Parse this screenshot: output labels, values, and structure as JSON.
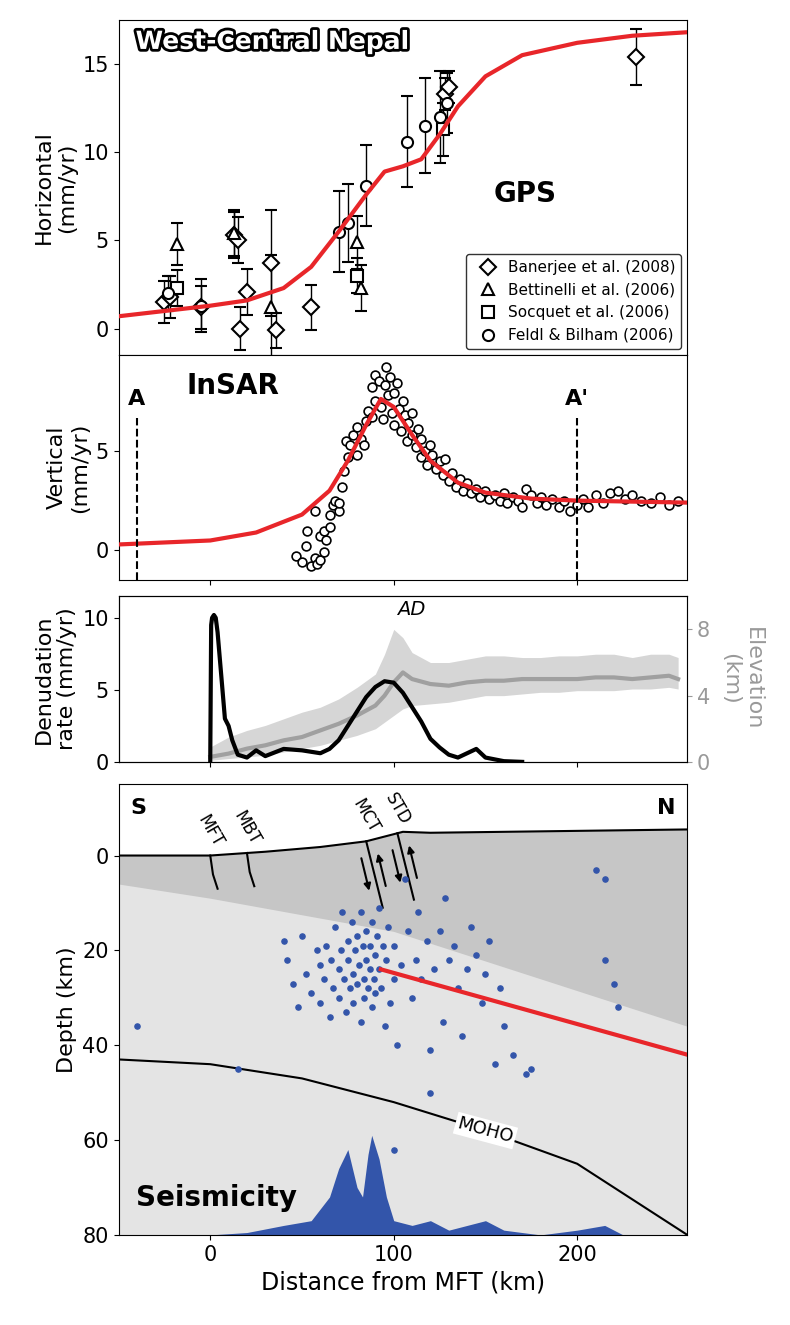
{
  "chart_data": [
    {
      "type": "scatter",
      "title": "West-Central Nepal",
      "ylabel": "Horizontal\n(mm/yr)",
      "annotation": "GPS",
      "legend": "lower right",
      "tick_labels": "y",
      "xlim": [
        -50,
        260
      ],
      "ylim": [
        -1.5,
        17.5
      ],
      "xticks": [
        0,
        100,
        200
      ],
      "yticks": [
        0,
        5,
        10,
        15
      ],
      "series": [
        {
          "type": "line",
          "color": "#e8262a",
          "line_style": "solid",
          "x": [
            -50,
            -25,
            0,
            20,
            40,
            55,
            70,
            85,
            95,
            105,
            115,
            125,
            135,
            150,
            170,
            200,
            230,
            260
          ],
          "values": [
            0.7,
            1.0,
            1.3,
            1.6,
            2.3,
            3.5,
            5.5,
            7.6,
            8.9,
            9.2,
            9.6,
            11.0,
            12.6,
            14.3,
            15.5,
            16.2,
            16.6,
            16.8
          ]
        },
        {
          "type": "scatter",
          "name": "Banerjee et al. (2008)",
          "color": "#000000",
          "marker": "diamond",
          "x": [
            -25,
            -22,
            -5,
            13,
            15,
            16,
            20,
            33,
            36,
            55,
            128,
            130,
            232
          ],
          "values": [
            1.5,
            1.8,
            1.2,
            5.3,
            5.0,
            0.0,
            2.1,
            3.7,
            -0.1,
            1.2,
            13.3,
            13.7,
            15.4
          ],
          "errors": [
            1.2,
            1.2,
            1.2,
            1.3,
            1.3,
            1.2,
            1.3,
            3.0,
            1.0,
            1.3,
            0.9,
            0.9,
            1.6
          ]
        },
        {
          "type": "scatter",
          "name": "Bettinelli et al. (2006)",
          "color": "#000000",
          "marker": "triangle",
          "x": [
            -18,
            13,
            33,
            80,
            82
          ],
          "values": [
            4.8,
            5.4,
            1.2,
            4.9,
            2.3
          ],
          "errors": [
            1.2,
            1.3,
            3.0,
            1.5,
            1.3
          ]
        },
        {
          "type": "scatter",
          "name": "Socquet et al. (2006)",
          "color": "#000000",
          "marker": "square",
          "x": [
            -18,
            80,
            127
          ],
          "values": [
            2.3,
            3.0,
            11.3
          ],
          "errors": [
            1.0,
            1.0,
            1.5
          ]
        },
        {
          "type": "scatter",
          "name": "Feldl & Bilham (2006)",
          "color": "#000000",
          "marker": "circle",
          "x": [
            -23,
            -5,
            70,
            75,
            85,
            107,
            117,
            125,
            129
          ],
          "values": [
            2.0,
            1.3,
            5.5,
            6.0,
            8.1,
            10.6,
            11.5,
            12.0,
            12.8
          ],
          "errors": [
            1.0,
            1.5,
            2.3,
            2.2,
            2.3,
            2.6,
            2.7,
            2.6,
            1.7
          ]
        }
      ]
    },
    {
      "type": "scatter",
      "ylabel": "Vertical\n(mm/yr)",
      "annotation": "InSAR",
      "tick_labels": "y",
      "xlim": [
        -50,
        260
      ],
      "ylim": [
        -1.5,
        9.8
      ],
      "xticks": [
        0,
        100,
        200
      ],
      "yticks": [
        0,
        5
      ],
      "markers": [
        {
          "label": "A",
          "x": -40
        },
        {
          "label": "A'",
          "x": 200
        }
      ],
      "series": [
        {
          "type": "scatter",
          "color": "#000000",
          "marker": "circle",
          "x": [
            47,
            50,
            52,
            53,
            55,
            57,
            57,
            58,
            60,
            60,
            62,
            62,
            63,
            65,
            65,
            67,
            68,
            70,
            70,
            72,
            73,
            74,
            75,
            76,
            78,
            80,
            80,
            82,
            84,
            85,
            86,
            88,
            88,
            90,
            90,
            92,
            93,
            94,
            95,
            96,
            97,
            98,
            99,
            100,
            100,
            102,
            103,
            104,
            105,
            106,
            107,
            108,
            110,
            110,
            112,
            113,
            115,
            115,
            117,
            118,
            120,
            121,
            123,
            125,
            127,
            128,
            130,
            132,
            134,
            136,
            138,
            140,
            142,
            145,
            147,
            150,
            152,
            155,
            158,
            160,
            162,
            165,
            168,
            170,
            172,
            175,
            178,
            180,
            183,
            186,
            190,
            193,
            196,
            200,
            203,
            206,
            210,
            214,
            218,
            222,
            226,
            230,
            235,
            240,
            245,
            250,
            255
          ],
          "values": [
            -0.3,
            -0.6,
            0.2,
            1.0,
            -0.8,
            -0.4,
            2.0,
            -0.7,
            -0.5,
            0.7,
            -0.1,
            1.0,
            0.5,
            1.2,
            1.8,
            2.3,
            2.5,
            2.0,
            2.4,
            3.2,
            4.0,
            5.5,
            4.7,
            5.3,
            5.8,
            4.8,
            6.2,
            5.6,
            5.3,
            6.5,
            7.0,
            6.7,
            8.2,
            7.5,
            8.8,
            8.5,
            7.2,
            6.6,
            8.3,
            9.2,
            7.8,
            8.7,
            6.9,
            7.9,
            6.3,
            8.4,
            7.1,
            6.0,
            7.5,
            6.8,
            5.5,
            6.4,
            6.9,
            5.8,
            5.2,
            6.1,
            5.6,
            4.7,
            5.0,
            4.3,
            5.3,
            4.8,
            4.1,
            4.5,
            3.8,
            4.6,
            3.5,
            3.9,
            3.2,
            3.6,
            3.0,
            3.4,
            2.9,
            3.1,
            2.7,
            3.0,
            2.6,
            2.8,
            2.5,
            2.9,
            2.4,
            2.7,
            2.5,
            2.2,
            3.1,
            2.8,
            2.4,
            2.7,
            2.3,
            2.6,
            2.2,
            2.5,
            2.0,
            2.3,
            2.6,
            2.2,
            2.8,
            2.4,
            2.9,
            3.0,
            2.6,
            2.8,
            2.5,
            2.4,
            2.7,
            2.3,
            2.5
          ]
        },
        {
          "type": "line",
          "color": "#e8262a",
          "line_style": "solid",
          "x": [
            -50,
            0,
            25,
            50,
            65,
            75,
            85,
            93,
            100,
            110,
            120,
            135,
            150,
            175,
            200,
            260
          ],
          "values": [
            0.3,
            0.5,
            0.9,
            1.8,
            3.0,
            4.5,
            6.3,
            7.6,
            7.2,
            5.8,
            4.5,
            3.4,
            2.9,
            2.6,
            2.5,
            2.4
          ]
        }
      ]
    },
    {
      "type": "line",
      "ylabel": "Denudation\nrate (mm/yr)",
      "y2label": "Elevation\n(km)",
      "annotation": "AD",
      "tick_labels": "y",
      "xlim": [
        -50,
        260
      ],
      "ylim": [
        0,
        11.5
      ],
      "xticks": [
        0,
        100,
        200
      ],
      "yticks": [
        0,
        5,
        10
      ],
      "y2lim": [
        0,
        10
      ],
      "y2ticks": [
        0,
        4,
        8
      ],
      "series": [
        {
          "type": "band",
          "axis": "y2",
          "color": "#d6d6d6",
          "x": [
            0,
            10,
            20,
            30,
            40,
            50,
            60,
            70,
            80,
            90,
            95,
            100,
            105,
            110,
            120,
            130,
            140,
            150,
            160,
            170,
            180,
            190,
            200,
            210,
            220,
            230,
            240,
            250,
            255
          ],
          "low": [
            0.1,
            0.2,
            0.3,
            0.4,
            0.6,
            0.8,
            1.0,
            1.3,
            1.6,
            2.0,
            2.4,
            2.8,
            3.2,
            3.4,
            3.5,
            3.6,
            3.8,
            4.0,
            4.0,
            4.1,
            4.2,
            4.2,
            4.3,
            4.3,
            4.3,
            4.4,
            4.4,
            4.5,
            4.4
          ],
          "high": [
            0.9,
            1.5,
            1.9,
            2.2,
            2.6,
            3.0,
            3.3,
            3.8,
            4.5,
            5.3,
            6.5,
            8.0,
            7.5,
            6.6,
            6.0,
            6.0,
            6.2,
            6.4,
            6.4,
            6.3,
            6.3,
            6.4,
            6.4,
            6.5,
            6.5,
            6.3,
            6.5,
            6.5,
            6.3
          ]
        },
        {
          "type": "line",
          "axis": "y2",
          "color": "#a0a0a0",
          "line_style": "solid",
          "x": [
            0,
            10,
            20,
            30,
            40,
            50,
            60,
            70,
            80,
            90,
            95,
            100,
            105,
            110,
            120,
            130,
            140,
            150,
            160,
            170,
            180,
            190,
            200,
            210,
            220,
            230,
            240,
            250,
            255
          ],
          "values": [
            0.3,
            0.5,
            0.8,
            1.0,
            1.3,
            1.5,
            1.9,
            2.3,
            2.8,
            3.4,
            4.0,
            4.8,
            5.4,
            5.0,
            4.7,
            4.6,
            4.8,
            4.9,
            4.9,
            5.0,
            5.0,
            5.0,
            5.0,
            5.1,
            5.1,
            5.0,
            5.1,
            5.2,
            5.0
          ]
        },
        {
          "type": "line",
          "color": "#000000",
          "line_style": "solid",
          "x": [
            0,
            0.5,
            1,
            2,
            3,
            4,
            6,
            8,
            10,
            12,
            15,
            20,
            25,
            30,
            40,
            50,
            60,
            65,
            70,
            75,
            80,
            85,
            90,
            95,
            100,
            105,
            110,
            115,
            120,
            125,
            130,
            135,
            140,
            145,
            150,
            160,
            170
          ],
          "values": [
            0,
            9.5,
            10.0,
            10.2,
            10.0,
            9.0,
            6.0,
            3.0,
            2.5,
            1.5,
            0.5,
            0.3,
            0.8,
            0.4,
            0.9,
            0.8,
            0.6,
            0.9,
            1.5,
            2.5,
            3.5,
            4.5,
            5.2,
            5.6,
            5.5,
            4.8,
            3.8,
            2.8,
            1.6,
            1.0,
            0.5,
            0.3,
            0.6,
            0.9,
            0.3,
            0.05,
            0
          ]
        }
      ]
    },
    {
      "type": "cross_section",
      "xlabel": "Distance from MFT (km)",
      "ylabel": "Depth (km)",
      "left_end": "S",
      "right_end": "N",
      "annotation": "Seismicity",
      "xlim": [
        -50,
        260
      ],
      "ylim": [
        80,
        -15
      ],
      "xticks": [
        0,
        100,
        200
      ],
      "yticks": [
        0,
        20,
        40,
        60,
        80
      ],
      "surface": {
        "color": "#000000",
        "x": [
          -50,
          0,
          30,
          60,
          85,
          95,
          105,
          120,
          160,
          200,
          260
        ],
        "values": [
          0,
          0,
          -0.8,
          -1.8,
          -3,
          -4,
          -5,
          -4.8,
          -5,
          -5.2,
          -5.5
        ]
      },
      "moho": {
        "label": "MOHO",
        "color": "#000000",
        "x": [
          -50,
          0,
          50,
          100,
          150,
          200,
          260
        ],
        "values": [
          43,
          44,
          47,
          52,
          58,
          65,
          80
        ]
      },
      "faults": [
        {
          "name": "MFT",
          "x": 0
        },
        {
          "name": "MBT",
          "x": 20
        },
        {
          "name": "MCT",
          "x": 85
        },
        {
          "name": "STD",
          "x": 102
        }
      ],
      "series": [
        {
          "type": "area",
          "color": "#3355aa",
          "x": [
            -50,
            0,
            20,
            40,
            55,
            65,
            70,
            75,
            80,
            83,
            86,
            88,
            92,
            96,
            100,
            110,
            120,
            130,
            140,
            150,
            160,
            180,
            200,
            215,
            225,
            260
          ],
          "values": [
            80,
            80,
            79.5,
            78,
            77,
            72,
            66,
            62,
            70,
            72,
            63,
            59,
            64,
            72,
            77,
            78,
            77,
            79,
            78,
            77,
            79,
            80,
            79,
            78,
            80,
            80
          ]
        },
        {
          "type": "scatter",
          "color": "#3355aa",
          "marker": "dot",
          "x": [
            -40,
            15,
            40,
            42,
            45,
            48,
            50,
            52,
            55,
            58,
            60,
            60,
            62,
            63,
            65,
            66,
            67,
            68,
            70,
            70,
            71,
            72,
            73,
            74,
            75,
            75,
            76,
            77,
            78,
            78,
            79,
            80,
            80,
            81,
            82,
            82,
            83,
            84,
            84,
            85,
            85,
            86,
            87,
            87,
            88,
            88,
            89,
            90,
            90,
            91,
            92,
            92,
            93,
            94,
            95,
            96,
            97,
            98,
            100,
            100,
            102,
            104,
            106,
            108,
            110,
            112,
            113,
            115,
            118,
            120,
            122,
            125,
            127,
            128,
            130,
            133,
            135,
            137,
            140,
            142,
            145,
            148,
            150,
            152,
            155,
            158,
            160,
            165,
            172,
            175,
            210,
            215,
            215,
            220,
            222,
            100,
            120
          ],
          "values": [
            36,
            45,
            18,
            22,
            27,
            32,
            17,
            25,
            29,
            20,
            23,
            31,
            26,
            19,
            34,
            22,
            28,
            15,
            24,
            30,
            20,
            12,
            26,
            33,
            18,
            22,
            28,
            14,
            25,
            31,
            20,
            17,
            27,
            23,
            35,
            12,
            19,
            26,
            30,
            22,
            16,
            28,
            24,
            19,
            32,
            14,
            26,
            21,
            29,
            17,
            24,
            11,
            28,
            19,
            36,
            22,
            15,
            31,
            19,
            26,
            40,
            23,
            5,
            16,
            30,
            22,
            12,
            26,
            18,
            41,
            24,
            16,
            35,
            9,
            22,
            19,
            28,
            38,
            24,
            15,
            21,
            31,
            25,
            18,
            44,
            28,
            36,
            42,
            46,
            45,
            3,
            5,
            22,
            27,
            32,
            62,
            50
          ]
        },
        {
          "type": "line",
          "color": "#e8262a",
          "line_style": "solid",
          "x": [
            93,
            260
          ],
          "values": [
            24,
            42
          ]
        }
      ]
    }
  ]
}
